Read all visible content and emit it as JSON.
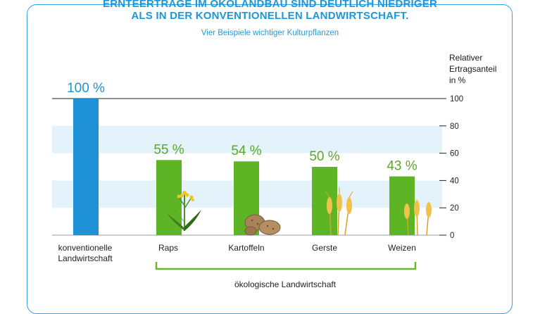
{
  "header": {
    "title_line1": "ERNTEERTRÄGE IM ÖKOLANDBAU SIND DEUTLICH NIEDRIGER",
    "title_line2": "ALS IN DER KONVENTIONELLEN LANDWIRTSCHAFT.",
    "subtitle": "Vier Beispiele wichtiger Kulturpflanzen"
  },
  "colors": {
    "conventional": "#1e90d6",
    "organic": "#5db526",
    "band": "#e4f2fb",
    "accent_text": "#5aa82a",
    "title": "#1e96d8"
  },
  "icons": [
    "raps-plant-icon",
    "potatoes-icon",
    "gerste-ears-icon",
    "weizen-ears-icon"
  ],
  "chart_data": {
    "type": "bar",
    "categories": [
      "konventionelle Landwirtschaft",
      "Raps",
      "Kartoffeln",
      "Gerste",
      "Weizen"
    ],
    "values": [
      100,
      55,
      54,
      50,
      43
    ],
    "value_labels": [
      "100 %",
      "55 %",
      "54 %",
      "50 %",
      "43 %"
    ],
    "category_labels": [
      [
        "konventionelle",
        "Landwirtschaft"
      ],
      [
        "Raps"
      ],
      [
        "Kartoffeln"
      ],
      [
        "Gerste"
      ],
      [
        "Weizen"
      ]
    ],
    "ylabel": [
      "Relativer",
      "Ertragsanteil",
      "in %"
    ],
    "ylim": [
      0,
      100
    ],
    "yticks": [
      0,
      20,
      40,
      60,
      80,
      100
    ],
    "group_label": "ökologische Landwirtschaft",
    "axis_position": "right",
    "shaded_bands": [
      [
        20,
        40
      ],
      [
        60,
        80
      ]
    ]
  }
}
